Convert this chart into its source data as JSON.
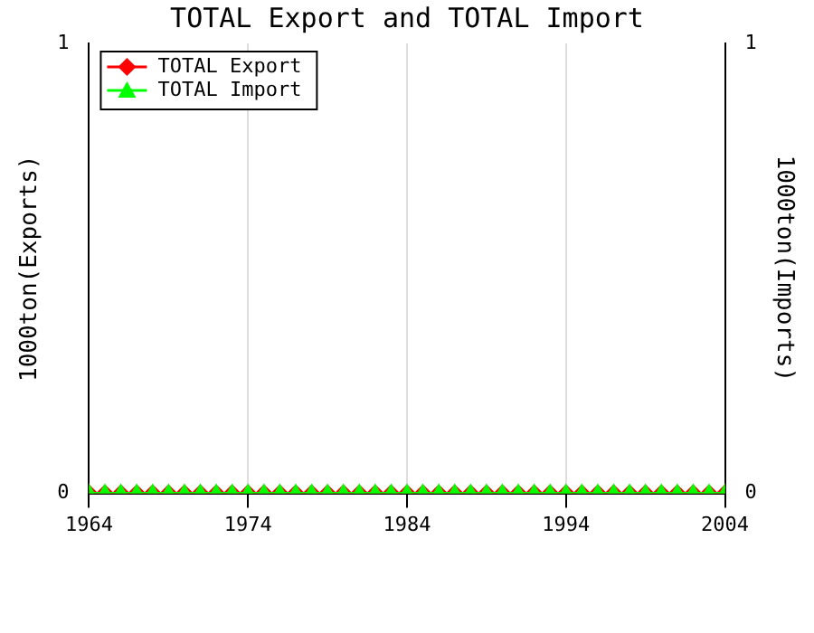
{
  "chart_data": {
    "type": "line",
    "title": "TOTAL Export and TOTAL Import",
    "ylabel": "1000ton(Exports)",
    "y2label": "1000ton(Imports)",
    "x": [
      1964,
      1965,
      1966,
      1967,
      1968,
      1969,
      1970,
      1971,
      1972,
      1973,
      1974,
      1975,
      1976,
      1977,
      1978,
      1979,
      1980,
      1981,
      1982,
      1983,
      1984,
      1985,
      1986,
      1987,
      1988,
      1989,
      1990,
      1991,
      1992,
      1993,
      1994,
      1995,
      1996,
      1997,
      1998,
      1999,
      2000,
      2001,
      2002,
      2003,
      2004
    ],
    "series": [
      {
        "name": "TOTAL Export",
        "color": "#ff0000",
        "marker": "diamond",
        "values": [
          0,
          0,
          0,
          0,
          0,
          0,
          0,
          0,
          0,
          0,
          0,
          0,
          0,
          0,
          0,
          0,
          0,
          0,
          0,
          0,
          0,
          0,
          0,
          0,
          0,
          0,
          0,
          0,
          0,
          0,
          0,
          0,
          0,
          0,
          0,
          0,
          0,
          0,
          0,
          0,
          0
        ]
      },
      {
        "name": "TOTAL Import",
        "color": "#00ff00",
        "marker": "triangle",
        "axis": "y2",
        "values": [
          0,
          0,
          0,
          0,
          0,
          0,
          0,
          0,
          0,
          0,
          0,
          0,
          0,
          0,
          0,
          0,
          0,
          0,
          0,
          0,
          0,
          0,
          0,
          0,
          0,
          0,
          0,
          0,
          0,
          0,
          0,
          0,
          0,
          0,
          0,
          0,
          0,
          0,
          0,
          0,
          0
        ]
      }
    ],
    "xlim": [
      1964,
      2004
    ],
    "xticks": [
      1964,
      1974,
      1984,
      1994,
      2004
    ],
    "ylim": [
      0,
      1
    ],
    "yticks": [
      0,
      1
    ],
    "y2lim": [
      0,
      1
    ],
    "y2ticks": [
      0,
      1
    ],
    "grid": "x",
    "legend": "top left",
    "line_style": "solid"
  }
}
